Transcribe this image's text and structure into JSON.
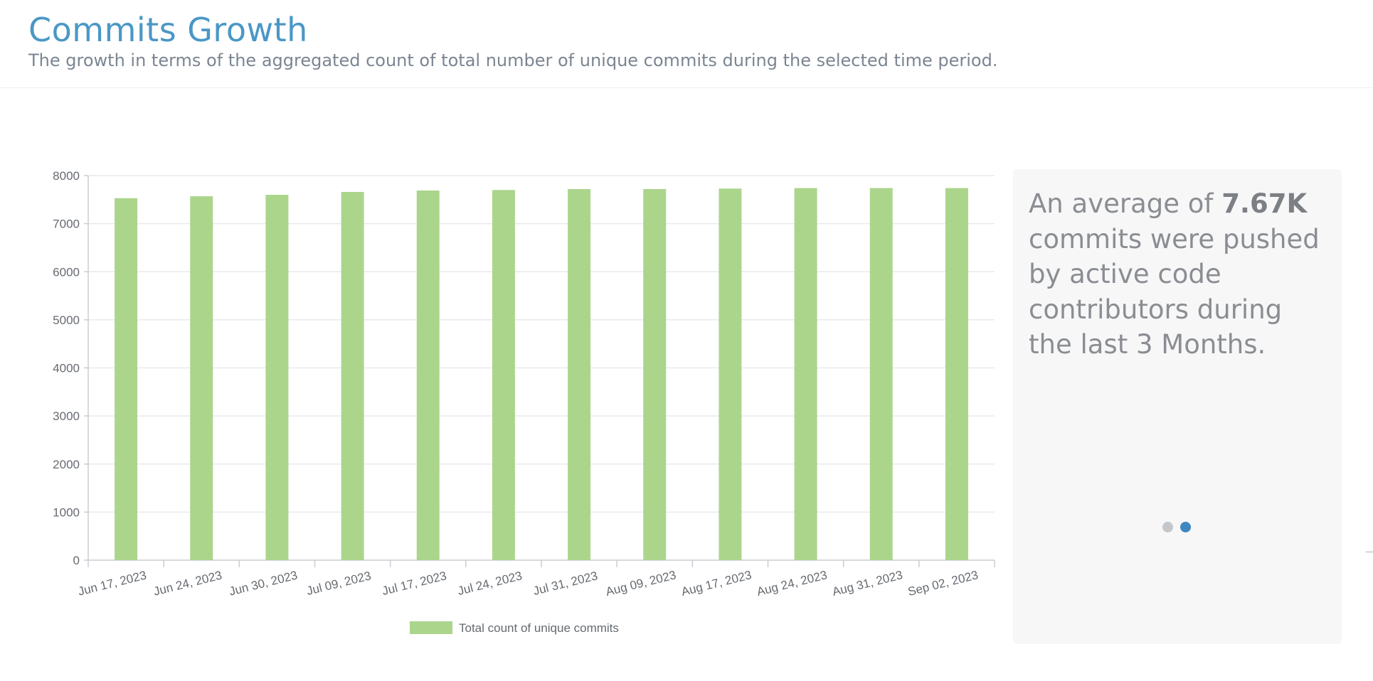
{
  "header": {
    "title": "Commits Growth",
    "subtitle": "The growth in terms of the aggregated count of total number of unique commits during the selected time period."
  },
  "insight": {
    "prefix": "An average of ",
    "highlight": "7.67K",
    "suffix": " commits were pushed by active code contributors during the last 3 Months."
  },
  "carousel": {
    "dots": 2,
    "active_index": 1
  },
  "colors": {
    "title": "#4a97c6",
    "bar": "#acd58c",
    "dot_active": "#3e88c0",
    "dot_inactive": "#c3c7cc"
  },
  "chart_data": {
    "type": "bar",
    "categories": [
      "Jun 17, 2023",
      "Jun 24, 2023",
      "Jun 30, 2023",
      "Jul 09, 2023",
      "Jul 17, 2023",
      "Jul 24, 2023",
      "Jul 31, 2023",
      "Aug 09, 2023",
      "Aug 17, 2023",
      "Aug 24, 2023",
      "Aug 31, 2023",
      "Sep 02, 2023"
    ],
    "series": [
      {
        "name": "Total count of unique commits",
        "values": [
          7530,
          7570,
          7600,
          7660,
          7690,
          7700,
          7720,
          7720,
          7730,
          7740,
          7740,
          7740
        ]
      }
    ],
    "ylim": [
      0,
      8000
    ],
    "yticks": [
      0,
      1000,
      2000,
      3000,
      4000,
      5000,
      6000,
      7000,
      8000
    ],
    "grid": true,
    "legend": "bottom",
    "xlabel": "",
    "ylabel": ""
  }
}
